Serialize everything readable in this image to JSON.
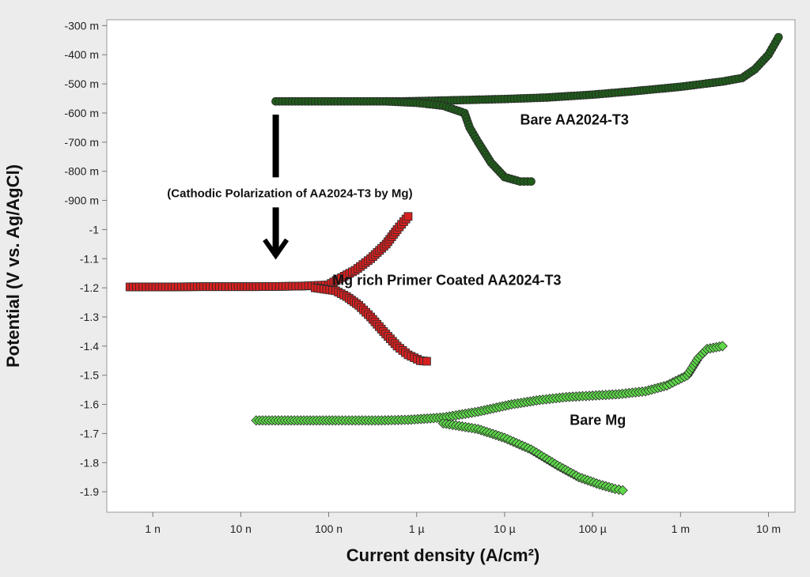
{
  "chart_data": {
    "type": "line",
    "xlabel": "Current density (A/cm²)",
    "ylabel": "Potential (V vs. Ag/AgCl)",
    "x_scale": "log",
    "x_unit": "A/cm²",
    "y_unit": "V",
    "xlim": [
      3e-10,
      0.02
    ],
    "ylim": [
      -1.97,
      -0.28
    ],
    "grid": false,
    "x_ticks": [
      {
        "value": 1e-09,
        "label": "1 n"
      },
      {
        "value": 1e-08,
        "label": "10 n"
      },
      {
        "value": 1e-07,
        "label": "100 n"
      },
      {
        "value": 1e-06,
        "label": "1 µ"
      },
      {
        "value": 1e-05,
        "label": "10 µ"
      },
      {
        "value": 0.0001,
        "label": "100 µ"
      },
      {
        "value": 0.001,
        "label": "1 m"
      },
      {
        "value": 0.01,
        "label": "10 m"
      }
    ],
    "y_ticks": [
      {
        "value": -0.3,
        "label": "-300 m"
      },
      {
        "value": -0.4,
        "label": "-400 m"
      },
      {
        "value": -0.5,
        "label": "-500 m"
      },
      {
        "value": -0.6,
        "label": "-600 m"
      },
      {
        "value": -0.7,
        "label": "-700 m"
      },
      {
        "value": -0.8,
        "label": "-800 m"
      },
      {
        "value": -0.9,
        "label": "-900 m"
      },
      {
        "value": -1.0,
        "label": "-1"
      },
      {
        "value": -1.1,
        "label": "-1.1"
      },
      {
        "value": -1.2,
        "label": "-1.2"
      },
      {
        "value": -1.3,
        "label": "-1.3"
      },
      {
        "value": -1.4,
        "label": "-1.4"
      },
      {
        "value": -1.5,
        "label": "-1.5"
      },
      {
        "value": -1.6,
        "label": "-1.6"
      },
      {
        "value": -1.7,
        "label": "-1.7"
      },
      {
        "value": -1.8,
        "label": "-1.8"
      },
      {
        "value": -1.9,
        "label": "-1.9"
      }
    ],
    "series": [
      {
        "name": "Bare AA2024-T3",
        "color": "#1f5c1a",
        "marker": "circle",
        "points": [
          [
            2.5e-08,
            -0.56
          ],
          [
            9e-08,
            -0.56
          ],
          [
            2.5e-07,
            -0.56
          ],
          [
            4.5e-07,
            -0.56
          ],
          [
            7e-07,
            -0.56
          ],
          [
            1.5e-06,
            -0.558
          ],
          [
            4e-06,
            -0.555
          ],
          [
            1e-05,
            -0.552
          ],
          [
            3e-05,
            -0.547
          ],
          [
            0.0001,
            -0.537
          ],
          [
            0.0003,
            -0.525
          ],
          [
            0.001,
            -0.51
          ],
          [
            0.003,
            -0.492
          ],
          [
            0.005,
            -0.48
          ],
          [
            0.007,
            -0.45
          ],
          [
            0.01,
            -0.4
          ],
          [
            0.013,
            -0.34
          ]
        ]
      },
      {
        "name": "Bare AA2024-T3",
        "color": "#1f5c1a",
        "marker": "circle",
        "points": [
          [
            4.5e-07,
            -0.56
          ],
          [
            1e-06,
            -0.565
          ],
          [
            2e-06,
            -0.575
          ],
          [
            3.5e-06,
            -0.6
          ],
          [
            4e-06,
            -0.65
          ],
          [
            5e-06,
            -0.7
          ],
          [
            7e-06,
            -0.77
          ],
          [
            1e-05,
            -0.82
          ],
          [
            1.5e-05,
            -0.835
          ],
          [
            2e-05,
            -0.835
          ]
        ]
      },
      {
        "name": "Mg rich Primer Coated AA2024-T3",
        "color": "#d62020",
        "marker": "square",
        "points": [
          [
            5.5e-10,
            -1.197
          ],
          [
            1.4e-09,
            -1.197
          ],
          [
            3.5e-09,
            -1.196
          ],
          [
            8e-09,
            -1.196
          ],
          [
            1.5e-08,
            -1.196
          ],
          [
            3e-08,
            -1.195
          ],
          [
            5e-08,
            -1.194
          ],
          [
            7e-08,
            -1.192
          ],
          [
            1e-07,
            -1.19
          ],
          [
            1.3e-07,
            -1.17
          ],
          [
            2e-07,
            -1.14
          ],
          [
            3e-07,
            -1.1
          ],
          [
            4.5e-07,
            -1.05
          ],
          [
            6e-07,
            -1.0
          ],
          [
            8e-07,
            -0.955
          ]
        ]
      },
      {
        "name": "Mg rich Primer Coated AA2024-T3",
        "color": "#d62020",
        "marker": "square",
        "points": [
          [
            7e-08,
            -1.2
          ],
          [
            1.2e-07,
            -1.21
          ],
          [
            1.6e-07,
            -1.23
          ],
          [
            2.2e-07,
            -1.26
          ],
          [
            3e-07,
            -1.3
          ],
          [
            4.2e-07,
            -1.35
          ],
          [
            6e-07,
            -1.4
          ],
          [
            8e-07,
            -1.43
          ],
          [
            1.1e-06,
            -1.45
          ],
          [
            1.3e-06,
            -1.452
          ]
        ]
      },
      {
        "name": "Bare Mg",
        "color": "#5ed94a",
        "marker": "diamond",
        "points": [
          [
            1.5e-08,
            -1.655
          ],
          [
            1.3e-07,
            -1.655
          ],
          [
            2.2e-07,
            -1.655
          ],
          [
            4e-07,
            -1.655
          ],
          [
            8e-07,
            -1.653
          ],
          [
            2e-06,
            -1.645
          ],
          [
            5e-06,
            -1.625
          ],
          [
            1.2e-05,
            -1.6
          ],
          [
            2.5e-05,
            -1.585
          ],
          [
            5e-05,
            -1.575
          ],
          [
            0.0001,
            -1.57
          ],
          [
            0.0002,
            -1.565
          ],
          [
            0.0004,
            -1.555
          ],
          [
            0.0007,
            -1.535
          ],
          [
            0.0012,
            -1.5
          ],
          [
            0.0016,
            -1.44
          ],
          [
            0.002,
            -1.41
          ],
          [
            0.003,
            -1.4
          ]
        ]
      },
      {
        "name": "Bare Mg",
        "color": "#5ed94a",
        "marker": "diamond",
        "points": [
          [
            2e-06,
            -1.665
          ],
          [
            5e-06,
            -1.685
          ],
          [
            1e-05,
            -1.715
          ],
          [
            2e-05,
            -1.755
          ],
          [
            4e-05,
            -1.81
          ],
          [
            7e-05,
            -1.85
          ],
          [
            0.00012,
            -1.875
          ],
          [
            0.00018,
            -1.89
          ],
          [
            0.00022,
            -1.895
          ]
        ]
      }
    ],
    "labels": [
      {
        "text": "Bare AA2024-T3",
        "x": 1.5e-05,
        "y": -0.64
      },
      {
        "text": "Mg rich Primer Coated AA2024-T3",
        "x": 1.1e-07,
        "y": -1.19
      },
      {
        "text": "Bare Mg",
        "x": 5.5e-05,
        "y": -1.67
      }
    ],
    "annotation": {
      "text": "(Cathodic Polarization of  AA2024-T3 by Mg)",
      "x": 4e-08,
      "y": -0.875,
      "arrow_x": 2.5e-08,
      "arrow_from_y": -0.6,
      "arrow_to_y": -1.1
    }
  }
}
